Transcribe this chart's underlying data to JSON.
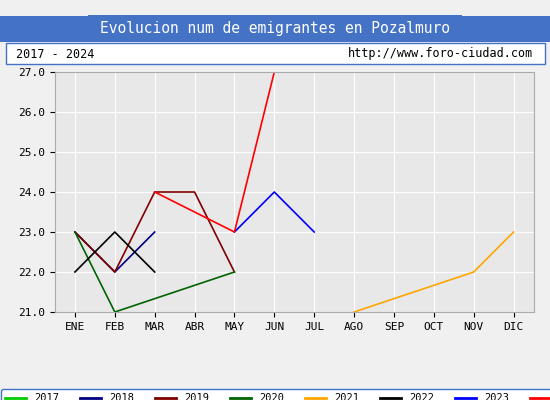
{
  "title": "Evolucion num de emigrantes en Pozalmuro",
  "subtitle_left": "2017 - 2024",
  "subtitle_right": "http://www.foro-ciudad.com",
  "x_labels": [
    "ENE",
    "FEB",
    "MAR",
    "ABR",
    "MAY",
    "JUN",
    "JUL",
    "AGO",
    "SEP",
    "OCT",
    "NOV",
    "DIC"
  ],
  "ylim": [
    21.0,
    27.0
  ],
  "yticks": [
    21.0,
    22.0,
    23.0,
    24.0,
    25.0,
    26.0,
    27.0
  ],
  "series": {
    "2017": {
      "color": "#00cc00",
      "data": [
        [
          0,
          23
        ]
      ]
    },
    "2018": {
      "color": "#000080",
      "data": [
        [
          0,
          23
        ],
        [
          1,
          22
        ],
        [
          2,
          23
        ]
      ]
    },
    "2019": {
      "color": "#800000",
      "data": [
        [
          0,
          23
        ],
        [
          1,
          22
        ],
        [
          2,
          24
        ],
        [
          3,
          24
        ],
        [
          4,
          22
        ]
      ]
    },
    "2020": {
      "color": "#006400",
      "data": [
        [
          0,
          23
        ],
        [
          1,
          21
        ],
        [
          4,
          22
        ]
      ]
    },
    "2021": {
      "color": "#ffa500",
      "data": [
        [
          7,
          21
        ],
        [
          10,
          22
        ],
        [
          11,
          23
        ]
      ]
    },
    "2022": {
      "color": "#000000",
      "data": [
        [
          0,
          22
        ],
        [
          1,
          23
        ],
        [
          2,
          22
        ]
      ]
    },
    "2023": {
      "color": "#0000ff",
      "data": [
        [
          4,
          23
        ],
        [
          5,
          24
        ],
        [
          6,
          23
        ]
      ]
    },
    "2024": {
      "color": "#ff0000",
      "data": [
        [
          2,
          24
        ],
        [
          4,
          23
        ],
        [
          5,
          27
        ],
        [
          6,
          27
        ]
      ]
    }
  },
  "background_color": "#f0f0f0",
  "plot_bg_color": "#e8e8e8",
  "title_bg_color": "#4472c4",
  "title_text_color": "#ffffff",
  "grid_color": "#ffffff",
  "border_color": "#4472c4"
}
